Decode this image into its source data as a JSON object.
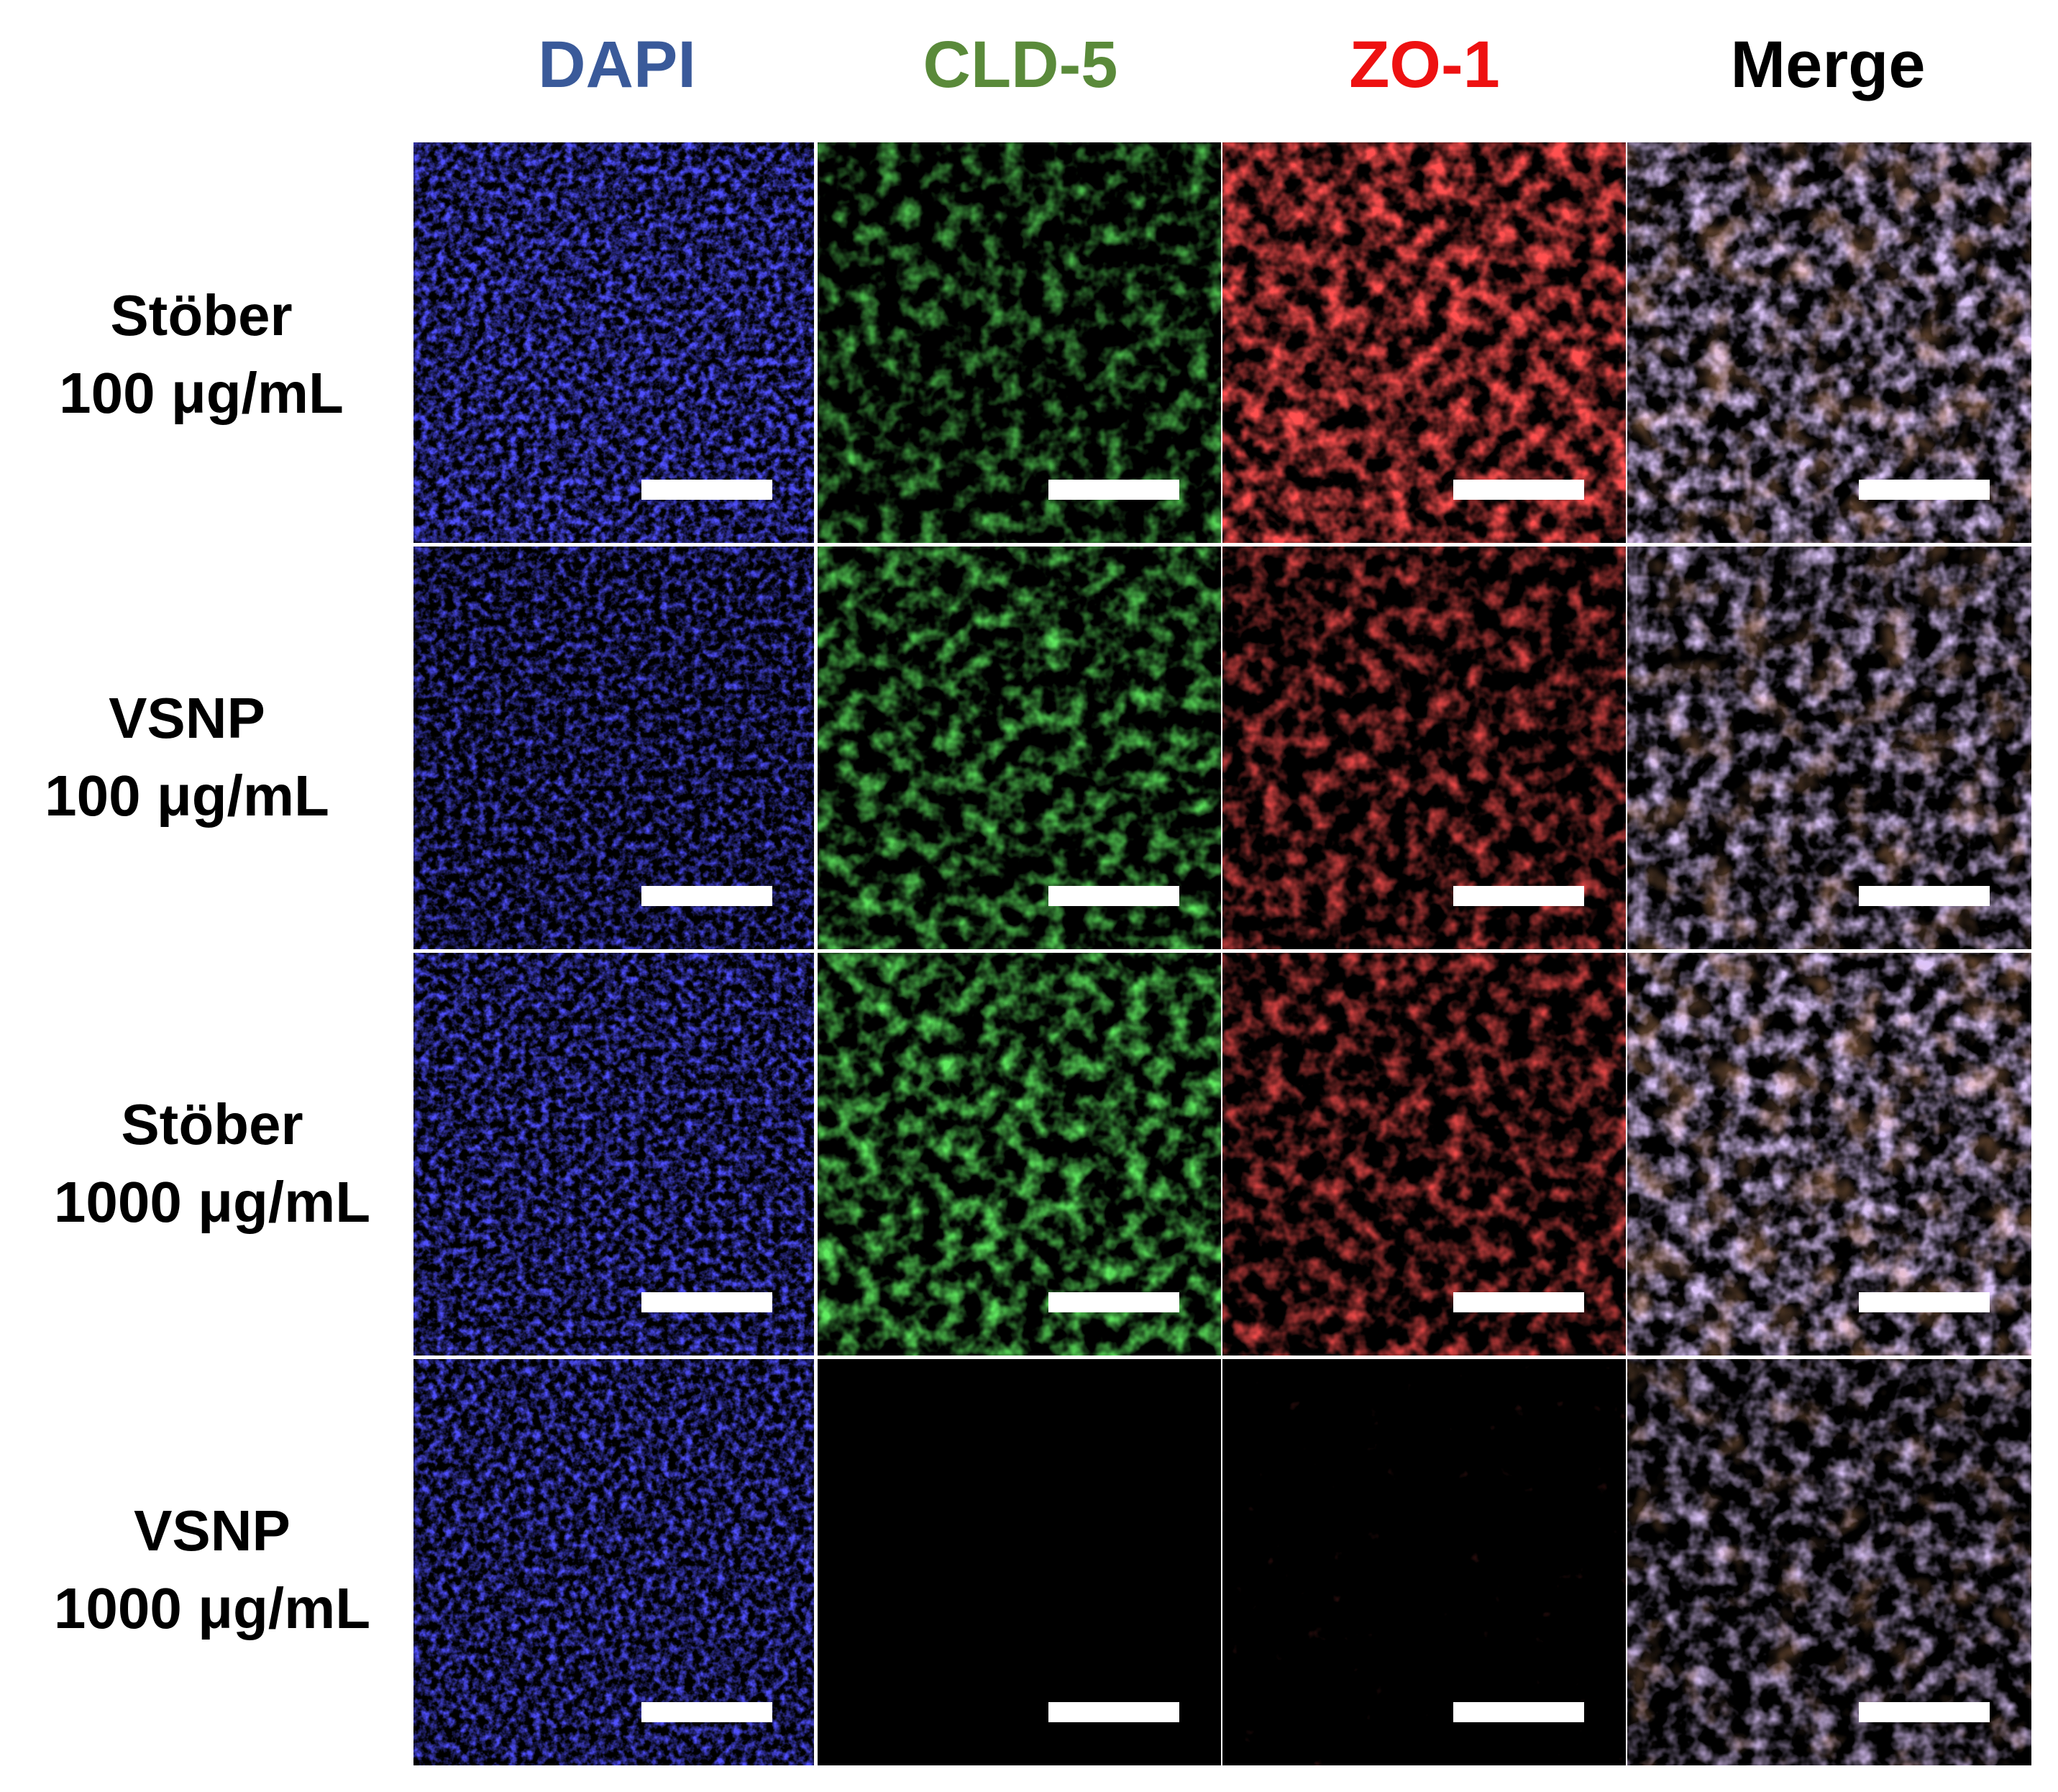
{
  "columns": [
    {
      "label": "DAPI",
      "color": "#3a5a9a"
    },
    {
      "label": "CLD-5",
      "color": "#5a8a3a"
    },
    {
      "label": "ZO-1",
      "color": "#ee1111"
    },
    {
      "label": "Merge",
      "color": "#000000"
    }
  ],
  "rows": [
    {
      "line1": "Stöber",
      "line2": "100 μg/mL"
    },
    {
      "line1": "VSNP",
      "line2": "100 μg/mL"
    },
    {
      "line1": "Stöber",
      "line2": "1000 μg/mL"
    },
    {
      "line1": "VSNP",
      "line2": "1000 μg/mL"
    }
  ],
  "channels": {
    "dapi": "#1a1aff",
    "cld5": "#22bb22",
    "zo1": "#ff1a1a",
    "merge": "#8877dd"
  }
}
